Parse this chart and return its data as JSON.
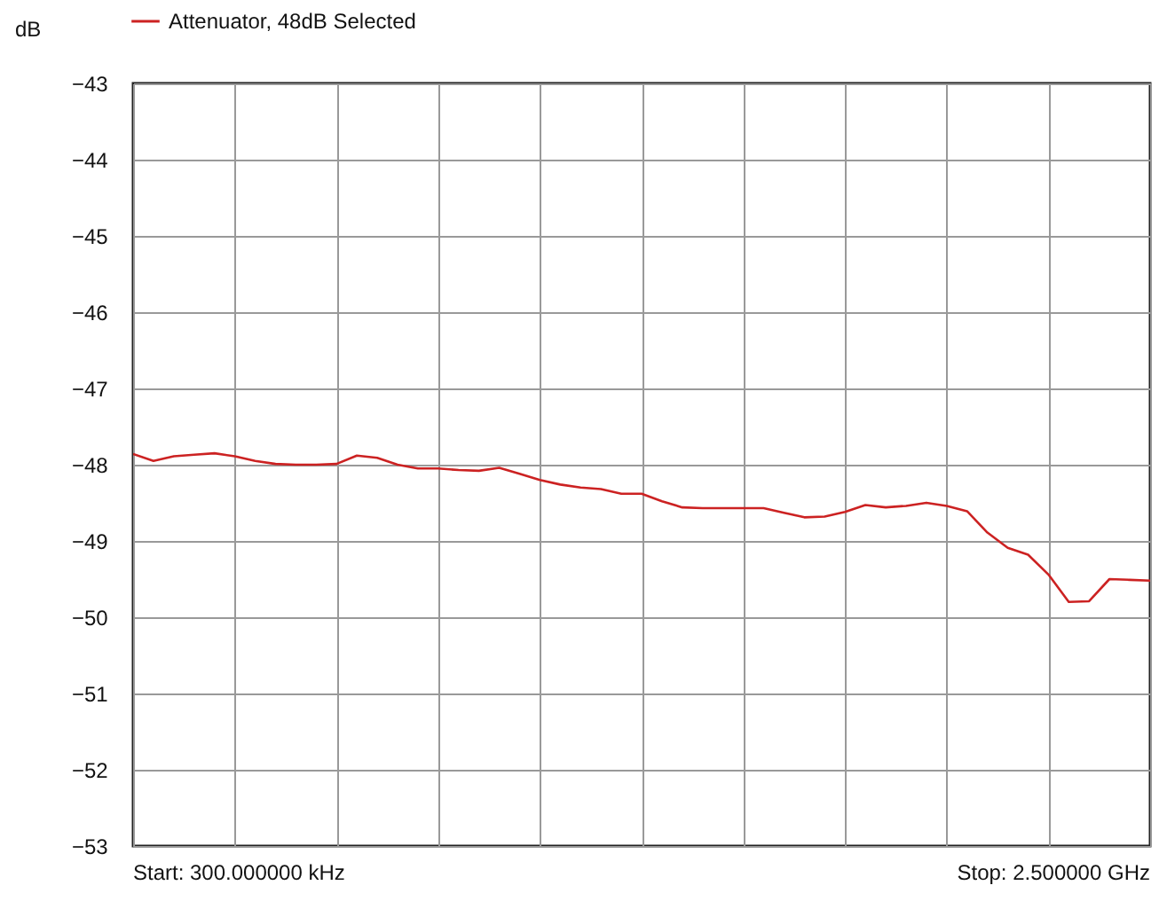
{
  "chart_data": {
    "type": "line",
    "ylabel": "dB",
    "categories": [
      null,
      null,
      null,
      null,
      null,
      null,
      null,
      null,
      null,
      null,
      null,
      null,
      null,
      null,
      null,
      null,
      null,
      null,
      null,
      null,
      null,
      null,
      null,
      null,
      null,
      null,
      null,
      null,
      null,
      null,
      null,
      null,
      null,
      null,
      null,
      null,
      null,
      null,
      null,
      null,
      null,
      null,
      null,
      null,
      null,
      null,
      null,
      null,
      null,
      null,
      null
    ],
    "series": [
      {
        "name": "Attenuator, 48dB Selected",
        "color": "#cc2222",
        "values": [
          -47.86,
          -47.95,
          -47.89,
          -47.87,
          -47.85,
          -47.89,
          -47.95,
          -47.99,
          -48.0,
          -48.0,
          -47.99,
          -47.88,
          -47.91,
          -48.0,
          -48.05,
          -48.05,
          -48.07,
          -48.08,
          -48.04,
          -48.12,
          -48.2,
          -48.26,
          -48.3,
          -48.32,
          -48.38,
          -48.38,
          -48.48,
          -48.56,
          -48.57,
          -48.57,
          -48.57,
          -48.57,
          -48.63,
          -48.69,
          -48.68,
          -48.62,
          -48.53,
          -48.56,
          -48.54,
          -48.5,
          -48.54,
          -48.61,
          -48.89,
          -49.09,
          -49.18,
          -49.44,
          -49.8,
          -49.79,
          -49.5,
          -49.51,
          -49.52
        ]
      }
    ],
    "ylim": [
      -53,
      -43
    ],
    "yticks": [
      -53,
      -52,
      -51,
      -50,
      -49,
      -48,
      -47,
      -46,
      -45,
      -44,
      -43
    ],
    "grid": true,
    "legend": "top left",
    "annotations": [
      "Start: 300.000000 kHz",
      "Stop: 2.500000 GHz"
    ]
  }
}
